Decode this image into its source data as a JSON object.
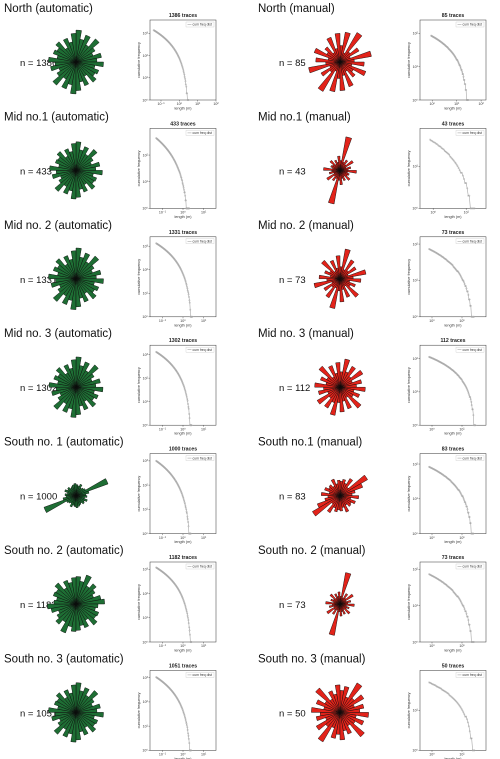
{
  "colors": {
    "automatic": "#1e6e34",
    "manual": "#e2231a",
    "cdf": "#a6a6a6"
  },
  "chart_data": [
    {
      "name": "North (automatic)",
      "type": "rose",
      "method": "automatic",
      "title": "North (automatic)",
      "n_label": "n = 1386",
      "traces_title": "1386 traces",
      "legend": "cum freq dist",
      "xlabel": "length (m)",
      "ylabel": "cumulative frequency",
      "xticks": [
        "10⁻¹",
        "10⁰",
        "10¹",
        "10²"
      ],
      "yticks": [
        "10³",
        "10²",
        "10¹",
        "10⁰"
      ],
      "x_log_range": [
        -1.6,
        2.0
      ],
      "y_log_range": [
        0,
        3.6
      ],
      "n": 1386,
      "lmin": 0.04,
      "lmax": 3.2,
      "shape": 2.2,
      "rose_petals": [
        58,
        42,
        52,
        36,
        55,
        40,
        33,
        47,
        38,
        50,
        35,
        44,
        40,
        48,
        30,
        46,
        37,
        52
      ]
    },
    {
      "name": "North (manual)",
      "type": "rose",
      "method": "manual",
      "title": "North (manual)",
      "n_label": "n = 85",
      "traces_title": "85 traces",
      "legend": "cum freq dist",
      "xlabel": "length (m)",
      "ylabel": "cumulative frequency",
      "xticks": [
        "10⁰",
        "10¹",
        "10²"
      ],
      "yticks": [
        "10²",
        "10¹",
        "10⁰"
      ],
      "x_log_range": [
        -0.5,
        2.2
      ],
      "y_log_range": [
        0,
        2.4
      ],
      "n": 85,
      "lmin": 0.9,
      "lmax": 30,
      "shape": 1.4,
      "rose_petals": [
        30,
        55,
        18,
        62,
        24,
        40,
        20,
        58,
        26,
        44,
        22,
        50,
        28,
        36,
        20,
        48,
        25,
        52
      ]
    },
    {
      "name": "Mid no.1 (automatic)",
      "type": "rose",
      "method": "automatic",
      "title": "Mid  no.1 (automatic)",
      "n_label": "n = 433",
      "traces_title": "433 traces",
      "legend": "cum freq dist",
      "xlabel": "length (m)",
      "ylabel": "cumulative frequency",
      "xticks": [
        "10⁻¹",
        "10⁰",
        "10¹"
      ],
      "yticks": [
        "10²",
        "10¹",
        "10⁰"
      ],
      "x_log_range": [
        -1.6,
        1.6
      ],
      "y_log_range": [
        0,
        3.0
      ],
      "n": 433,
      "lmin": 0.05,
      "lmax": 2.0,
      "shape": 2.4,
      "rose_petals": [
        52,
        38,
        46,
        34,
        50,
        36,
        30,
        44,
        36,
        48,
        32,
        40,
        38,
        45,
        30,
        42,
        35,
        49
      ]
    },
    {
      "name": "Mid no.1 (manual)",
      "type": "rose",
      "method": "manual",
      "title": "Mid no.1 (manual)",
      "n_label": "n = 43",
      "traces_title": "43 traces",
      "legend": "cum freq dist",
      "xlabel": "length (m)",
      "ylabel": "cumulative frequency",
      "xticks": [
        "10⁰",
        "10¹"
      ],
      "yticks": [
        "10¹",
        "10⁰"
      ],
      "x_log_range": [
        -0.4,
        1.6
      ],
      "y_log_range": [
        0,
        1.9
      ],
      "n": 43,
      "lmin": 0.8,
      "lmax": 18,
      "shape": 1.5,
      "rose_petals": [
        18,
        62,
        16,
        22,
        14,
        28,
        12,
        20,
        15,
        30,
        14,
        18,
        16,
        24,
        13,
        20,
        15,
        26
      ]
    },
    {
      "name": "Mid no.2 (automatic)",
      "type": "rose",
      "method": "automatic",
      "title": "Mid no. 2 (automatic)",
      "n_label": "n = 1331",
      "traces_title": "1331 traces",
      "legend": "cum freq dist",
      "xlabel": "length (m)",
      "ylabel": "cumulative frequency",
      "xticks": [
        "10⁻¹",
        "10⁰",
        "10¹"
      ],
      "yticks": [
        "10³",
        "10²",
        "10¹",
        "10⁰"
      ],
      "x_log_range": [
        -1.6,
        1.6
      ],
      "y_log_range": [
        0,
        3.4
      ],
      "n": 1331,
      "lmin": 0.05,
      "lmax": 2.8,
      "shape": 2.2,
      "rose_petals": [
        56,
        40,
        50,
        36,
        54,
        38,
        32,
        46,
        37,
        50,
        34,
        44,
        39,
        48,
        31,
        45,
        36,
        51
      ]
    },
    {
      "name": "Mid no.2 (manual)",
      "type": "rose",
      "method": "manual",
      "title": "Mid no. 2 (manual)",
      "n_label": "n = 73",
      "traces_title": "73 traces",
      "legend": "cum freq dist",
      "xlabel": "length (m)",
      "ylabel": "cumulative frequency",
      "xticks": [
        "10⁰",
        "10¹"
      ],
      "yticks": [
        "10²",
        "10¹",
        "10⁰"
      ],
      "x_log_range": [
        -0.4,
        1.8
      ],
      "y_log_range": [
        0,
        2.2
      ],
      "n": 73,
      "lmin": 0.8,
      "lmax": 25,
      "shape": 1.4,
      "rose_petals": [
        22,
        55,
        18,
        40,
        20,
        34,
        16,
        48,
        24,
        38,
        18,
        30,
        22,
        44,
        16,
        36,
        20,
        42
      ]
    },
    {
      "name": "Mid no.3 (automatic)",
      "type": "rose",
      "method": "automatic",
      "title": "Mid no. 3 (automatic)",
      "n_label": "n = 1302",
      "traces_title": "1302 traces",
      "legend": "cum freq dist",
      "xlabel": "length (m)",
      "ylabel": "cumulative frequency",
      "xticks": [
        "10⁻¹",
        "10⁰",
        "10¹"
      ],
      "yticks": [
        "10³",
        "10²",
        "10¹",
        "10⁰"
      ],
      "x_log_range": [
        -1.6,
        1.6
      ],
      "y_log_range": [
        0,
        3.4
      ],
      "n": 1302,
      "lmin": 0.05,
      "lmax": 2.6,
      "shape": 2.2,
      "rose_petals": [
        55,
        40,
        49,
        35,
        53,
        38,
        31,
        45,
        36,
        49,
        34,
        43,
        38,
        47,
        30,
        44,
        35,
        50
      ]
    },
    {
      "name": "Mid no.3 (manual)",
      "type": "rose",
      "method": "manual",
      "title": "Mid no. 3 (manual)",
      "n_label": "n = 112",
      "traces_title": "112 traces",
      "legend": "cum freq dist",
      "xlabel": "length (m)",
      "ylabel": "cumulative frequency",
      "xticks": [
        "10⁰",
        "10¹"
      ],
      "yticks": [
        "10²",
        "10¹",
        "10⁰"
      ],
      "x_log_range": [
        -0.4,
        1.8
      ],
      "y_log_range": [
        0,
        2.4
      ],
      "n": 112,
      "lmin": 0.8,
      "lmax": 28,
      "shape": 1.3,
      "rose_petals": [
        28,
        52,
        30,
        44,
        26,
        48,
        24,
        40,
        30,
        46,
        26,
        38,
        28,
        50,
        22,
        42,
        26,
        45
      ]
    },
    {
      "name": "South no.1 (automatic)",
      "type": "rose",
      "method": "automatic",
      "title": "South  no. 1 (automatic)",
      "n_label": "n = 1000",
      "traces_title": "1000 traces",
      "legend": "cum freq dist",
      "xlabel": "length (m)",
      "ylabel": "cumulative frequency",
      "xticks": [
        "10⁻¹",
        "10⁰",
        "10¹"
      ],
      "yticks": [
        "10³",
        "10²",
        "10¹",
        "10⁰"
      ],
      "x_log_range": [
        -1.6,
        1.6
      ],
      "y_log_range": [
        0,
        3.3
      ],
      "n": 1000,
      "lmin": 0.05,
      "lmax": 2.4,
      "shape": 2.3,
      "rose_petals": [
        20,
        18,
        22,
        16,
        18,
        20,
        62,
        24,
        18,
        20,
        16,
        22,
        18,
        20,
        16,
        18,
        20,
        22
      ]
    },
    {
      "name": "South no.1 (manual)",
      "type": "rose",
      "method": "manual",
      "title": "South  no.1 (manual)",
      "n_label": "n = 83",
      "traces_title": "83 traces",
      "legend": "cum freq dist",
      "xlabel": "length (m)",
      "ylabel": "cumulative frequency",
      "xticks": [
        "10⁰",
        "10¹"
      ],
      "yticks": [
        "10²",
        "10¹",
        "10⁰"
      ],
      "x_log_range": [
        -0.4,
        1.8
      ],
      "y_log_range": [
        0,
        2.3
      ],
      "n": 83,
      "lmin": 0.8,
      "lmax": 24,
      "shape": 1.4,
      "rose_petals": [
        26,
        30,
        24,
        36,
        20,
        58,
        44,
        28,
        22,
        34,
        20,
        30,
        24,
        26,
        20,
        32,
        22,
        28
      ]
    },
    {
      "name": "South no.2 (automatic)",
      "type": "rose",
      "method": "automatic",
      "title": "South  no. 2 (automatic)",
      "n_label": "n = 1182",
      "traces_title": "1182 traces",
      "legend": "cum freq dist",
      "xlabel": "length (m)",
      "ylabel": "cumulative frequency",
      "xticks": [
        "10⁻¹",
        "10⁰",
        "10¹"
      ],
      "yticks": [
        "10³",
        "10²",
        "10¹",
        "10⁰"
      ],
      "x_log_range": [
        -1.6,
        1.6
      ],
      "y_log_range": [
        0,
        3.3
      ],
      "n": 1182,
      "lmin": 0.05,
      "lmax": 2.6,
      "shape": 2.1,
      "rose_petals": [
        50,
        42,
        56,
        38,
        48,
        40,
        34,
        46,
        52,
        40,
        36,
        44,
        42,
        50,
        34,
        46,
        40,
        48
      ]
    },
    {
      "name": "South no.2 (manual)",
      "type": "rose",
      "method": "manual",
      "title": "South  no. 2 (manual)",
      "n_label": "n = 73",
      "traces_title": "73 traces",
      "legend": "cum freq dist",
      "xlabel": "length (m)",
      "ylabel": "cumulative frequency",
      "xticks": [
        "10⁰",
        "10¹"
      ],
      "yticks": [
        "10²",
        "10¹",
        "10⁰"
      ],
      "x_log_range": [
        -0.4,
        1.8
      ],
      "y_log_range": [
        0,
        2.2
      ],
      "n": 73,
      "lmin": 0.8,
      "lmax": 25,
      "shape": 1.4,
      "rose_petals": [
        14,
        58,
        12,
        22,
        14,
        28,
        12,
        20,
        14,
        26,
        12,
        18,
        14,
        24,
        12,
        20,
        14,
        22
      ]
    },
    {
      "name": "South no.3 (automatic)",
      "type": "rose",
      "method": "automatic",
      "title": "South  no. 3 (automatic)",
      "n_label": "n = 1051",
      "traces_title": "1051 traces",
      "legend": "cum freq dist",
      "xlabel": "length (m)",
      "ylabel": "cumulative frequency",
      "xticks": [
        "10⁻¹",
        "10⁰",
        "10¹"
      ],
      "yticks": [
        "10³",
        "10²",
        "10¹",
        "10⁰"
      ],
      "x_log_range": [
        -1.6,
        1.6
      ],
      "y_log_range": [
        0,
        3.3
      ],
      "n": 1051,
      "lmin": 0.05,
      "lmax": 2.5,
      "shape": 2.2,
      "rose_petals": [
        54,
        40,
        48,
        36,
        52,
        38,
        32,
        45,
        38,
        50,
        34,
        42,
        40,
        47,
        32,
        44,
        36,
        50
      ]
    },
    {
      "name": "South no.3 (manual)",
      "type": "rose",
      "method": "manual",
      "title": "South  no. 3 (manual)",
      "n_label": "n = 50",
      "traces_title": "50 traces",
      "legend": "cum freq dist",
      "xlabel": "length (m)",
      "ylabel": "cumulative frequency",
      "xticks": [
        "10⁰",
        "10¹"
      ],
      "yticks": [
        "10¹",
        "10⁰"
      ],
      "x_log_range": [
        -0.4,
        1.8
      ],
      "y_log_range": [
        0,
        2.0
      ],
      "n": 50,
      "lmin": 0.8,
      "lmax": 26,
      "shape": 1.2,
      "rose_petals": [
        40,
        48,
        30,
        62,
        34,
        50,
        28,
        44,
        36,
        52,
        30,
        46,
        32,
        58,
        28,
        42,
        34,
        50
      ]
    }
  ]
}
